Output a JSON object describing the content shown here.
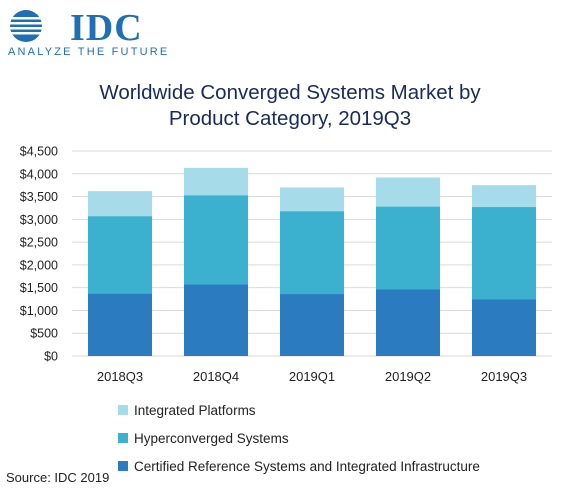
{
  "header": {
    "logo_text": "IDC",
    "tagline": "ANALYZE THE FUTURE",
    "logo_icon": "idc-globe-icon",
    "brand_color": "#1f6fb2"
  },
  "chart_data": {
    "type": "bar",
    "stacked": true,
    "title_line1": "Worldwide Converged Systems Market by",
    "title_line2": "Product Category, 2019Q3",
    "categories": [
      "2018Q3",
      "2018Q4",
      "2019Q1",
      "2019Q2",
      "2019Q3"
    ],
    "series": [
      {
        "name": "Certified Reference Systems and Integrated Infrastructure",
        "color": "#2a7bc0",
        "values": [
          1370,
          1570,
          1360,
          1460,
          1240
        ]
      },
      {
        "name": "Hyperconverged Systems",
        "color": "#3bb0cf",
        "values": [
          1700,
          1960,
          1820,
          1820,
          2030
        ]
      },
      {
        "name": "Integrated Platforms",
        "color": "#a6dce9",
        "values": [
          550,
          600,
          520,
          640,
          480
        ]
      }
    ],
    "ylim": [
      0,
      4500
    ],
    "yticks": [
      "$0",
      "$500",
      "$1,000",
      "$1,500",
      "$2,000",
      "$2,500",
      "$3,000",
      "$3,500",
      "$4,000",
      "$4,500"
    ],
    "grid": true,
    "legend_position": "bottom"
  },
  "footer": {
    "source": "Source: IDC 2019"
  }
}
